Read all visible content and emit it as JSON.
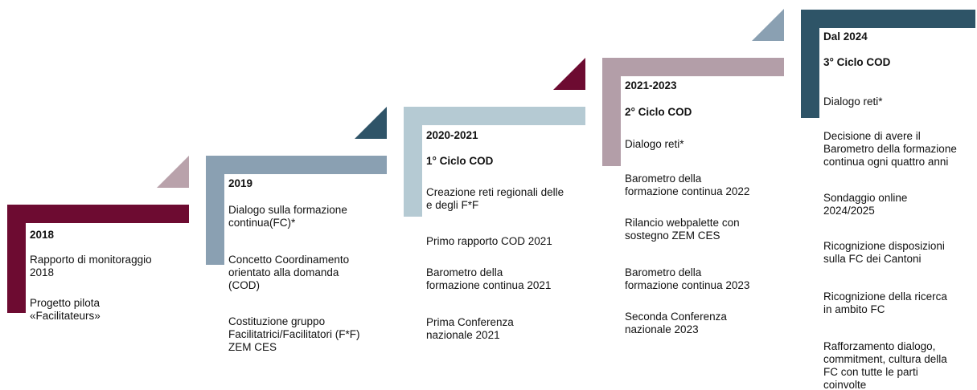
{
  "steps": [
    {
      "period": "2018",
      "items": [
        [
          "Rapporto di monitoraggio",
          "2018"
        ],
        [
          "Progetto pilota",
          "«Facilitateurs»"
        ]
      ]
    },
    {
      "period": "2019",
      "items": [
        [
          "Dialogo sulla formazione",
          "continua(FC)*"
        ],
        [
          "Concetto Coordinamento",
          "orientato alla domanda",
          "(COD)"
        ],
        [
          "Costituzione gruppo",
          "Facilitatrici/Facilitatori (F*F)",
          "ZEM CES"
        ]
      ]
    },
    {
      "period": "2020-2021",
      "cycle": "1° Ciclo COD",
      "items": [
        [
          "Creazione reti regionali delle",
          "e degli F*F"
        ],
        [
          "Primo rapporto COD 2021"
        ],
        [
          "Barometro della",
          "formazione continua 2021"
        ],
        [
          "Prima Conferenza",
          "nazionale 2021"
        ]
      ]
    },
    {
      "period": "2021-2023",
      "cycle": "2° Ciclo COD",
      "items": [
        [
          "Dialogo reti*"
        ],
        [
          "Barometro della",
          "formazione continua 2022"
        ],
        [
          "Rilancio webpalette con",
          "sostegno ZEM CES"
        ],
        [
          "Barometro della",
          "formazione continua 2023"
        ],
        [
          "Seconda Conferenza",
          "nazionale 2023"
        ]
      ]
    },
    {
      "period": "Dal 2024",
      "cycle": "3° Ciclo COD",
      "items": [
        [
          "Dialogo reti*"
        ],
        [
          "Decisione di avere il",
          "Barometro della formazione",
          "continua ogni quattro anni"
        ],
        [
          "Sondaggio online",
          "2024/2025"
        ],
        [
          "Ricognizione disposizioni",
          "sulla FC dei Cantoni"
        ],
        [
          "Ricognizione della ricerca",
          "in ambito FC"
        ],
        [
          "Rafforzamento dialogo,",
          "commitment, cultura della",
          "FC con tutte le parti",
          "coinvolte"
        ]
      ]
    }
  ]
}
